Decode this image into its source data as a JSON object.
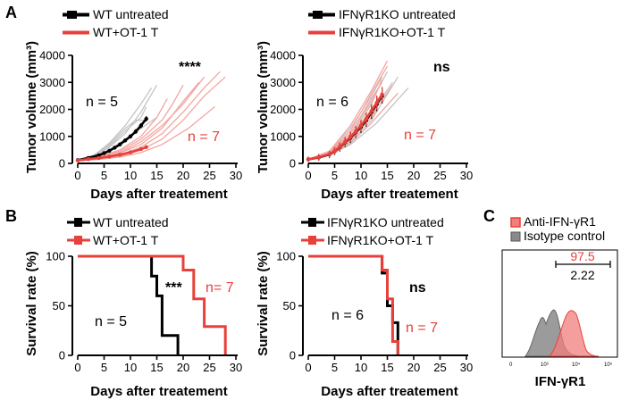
{
  "colors": {
    "black": "#000000",
    "red": "#e8403a",
    "light_red": "#f2a6a2",
    "light_gray": "#c4c4c4",
    "hist_red": "#f27e7e",
    "hist_gray": "#8a8a8a"
  },
  "chart_data": [
    {
      "panel": "A",
      "type": "line",
      "xlabel": "Days after treatement",
      "ylabel": "Tumor volume (mm³)",
      "xlim": [
        0,
        30
      ],
      "ylim": [
        0,
        4000
      ],
      "xticks": [
        0,
        5,
        10,
        15,
        20,
        25,
        30
      ],
      "yticks": [
        0,
        1000,
        2000,
        3000,
        4000
      ],
      "legend": [
        {
          "label": "WT untreated",
          "color": "#000000"
        },
        {
          "label": "WT+OT-1 T",
          "color": "#e8403a"
        }
      ],
      "annotations": [
        {
          "text": "****",
          "color": "#000000"
        },
        {
          "text": "n = 5",
          "color": "#000000"
        },
        {
          "text": "n = 7",
          "color": "#e8403a"
        }
      ],
      "series": [
        {
          "name": "WT untreated mean",
          "x": [
            0,
            2,
            4,
            5,
            6,
            7,
            8,
            9,
            10,
            11,
            12,
            13
          ],
          "y": [
            120,
            200,
            300,
            380,
            470,
            580,
            700,
            850,
            1000,
            1180,
            1400,
            1650
          ],
          "err": 70
        },
        {
          "name": "WT+OT-1 T mean",
          "x": [
            0,
            2,
            4,
            6,
            8,
            10,
            12,
            13
          ],
          "y": [
            110,
            160,
            200,
            250,
            320,
            410,
            530,
            600
          ],
          "err": 40
        }
      ],
      "individual_gray": [
        {
          "x": [
            0,
            3,
            6,
            9,
            12,
            15
          ],
          "y": [
            100,
            250,
            600,
            1100,
            1900,
            2900
          ]
        },
        {
          "x": [
            0,
            3,
            6,
            9,
            12,
            14
          ],
          "y": [
            100,
            280,
            750,
            1400,
            2200,
            2800
          ]
        },
        {
          "x": [
            0,
            3,
            6,
            9,
            12,
            13
          ],
          "y": [
            120,
            300,
            650,
            1200,
            1700,
            2100
          ]
        },
        {
          "x": [
            0,
            3,
            6,
            9,
            11,
            13
          ],
          "y": [
            100,
            300,
            700,
            1300,
            1600,
            1600
          ]
        },
        {
          "x": [
            0,
            3,
            6,
            9,
            12,
            15
          ],
          "y": [
            120,
            250,
            500,
            900,
            1300,
            1700
          ]
        }
      ],
      "individual_red": [
        {
          "x": [
            0,
            4,
            8,
            12,
            16,
            20,
            24,
            28
          ],
          "y": [
            100,
            150,
            250,
            500,
            900,
            1600,
            2500,
            3200
          ]
        },
        {
          "x": [
            0,
            4,
            8,
            12,
            16,
            20,
            24,
            27
          ],
          "y": [
            100,
            180,
            320,
            600,
            1100,
            1900,
            2800,
            3400
          ]
        },
        {
          "x": [
            0,
            4,
            8,
            12,
            16,
            20,
            24
          ],
          "y": [
            100,
            200,
            400,
            800,
            1400,
            2200,
            3200
          ]
        },
        {
          "x": [
            0,
            4,
            8,
            12,
            16,
            20,
            23
          ],
          "y": [
            120,
            200,
            380,
            700,
            1300,
            2300,
            3000
          ]
        },
        {
          "x": [
            0,
            4,
            8,
            12,
            16,
            18,
            20
          ],
          "y": [
            100,
            220,
            450,
            900,
            1600,
            2200,
            2900
          ]
        },
        {
          "x": [
            0,
            4,
            8,
            12,
            15,
            17
          ],
          "y": [
            100,
            250,
            500,
            1000,
            1700,
            2400
          ]
        },
        {
          "x": [
            0,
            4,
            8,
            12,
            16,
            21,
            26
          ],
          "y": [
            100,
            150,
            230,
            400,
            700,
            1300,
            2100
          ]
        }
      ]
    },
    {
      "panel": "A2",
      "type": "line",
      "xlabel": "Days after treatement",
      "ylabel": "Tumor volume (mm³)",
      "xlim": [
        0,
        30
      ],
      "ylim": [
        0,
        4000
      ],
      "xticks": [
        0,
        5,
        10,
        15,
        20,
        25,
        30
      ],
      "yticks": [
        0,
        1000,
        2000,
        3000,
        4000
      ],
      "legend": [
        {
          "label": "IFNγR1KO untreated",
          "color": "#000000"
        },
        {
          "label": "IFNγR1KO+OT-1 T",
          "color": "#e8403a"
        }
      ],
      "annotations": [
        {
          "text": "ns",
          "color": "#000000"
        },
        {
          "text": "n = 6",
          "color": "#000000"
        },
        {
          "text": "n = 7",
          "color": "#e8403a"
        }
      ],
      "series": [
        {
          "name": "IFNγR1KO untreated mean",
          "x": [
            0,
            2,
            4,
            5,
            6,
            7,
            8,
            9,
            10,
            11,
            12,
            13,
            14
          ],
          "y": [
            150,
            220,
            330,
            450,
            600,
            780,
            950,
            1150,
            1350,
            1600,
            1900,
            2200,
            2500
          ],
          "err": 200
        },
        {
          "name": "IFNγR1KO+OT-1 T mean",
          "x": [
            0,
            2,
            4,
            5,
            6,
            7,
            8,
            9,
            10,
            11,
            12,
            13,
            14
          ],
          "y": [
            150,
            230,
            340,
            460,
            620,
            800,
            980,
            1180,
            1400,
            1650,
            1950,
            2250,
            2550
          ],
          "err": 200
        }
      ],
      "individual_gray": [
        {
          "x": [
            0,
            4,
            8,
            12,
            15
          ],
          "y": [
            150,
            400,
            1100,
            2300,
            3400
          ]
        },
        {
          "x": [
            0,
            4,
            8,
            12,
            16
          ],
          "y": [
            150,
            350,
            900,
            1900,
            3000
          ]
        },
        {
          "x": [
            0,
            4,
            8,
            12,
            14
          ],
          "y": [
            150,
            450,
            1300,
            2500,
            3200
          ]
        },
        {
          "x": [
            0,
            4,
            8,
            12,
            17
          ],
          "y": [
            150,
            300,
            800,
            1600,
            3200
          ]
        },
        {
          "x": [
            0,
            4,
            8,
            13,
            19
          ],
          "y": [
            150,
            300,
            700,
            1500,
            2800
          ]
        },
        {
          "x": [
            0,
            4,
            8,
            12,
            14
          ],
          "y": [
            150,
            400,
            1000,
            2000,
            2600
          ]
        }
      ],
      "individual_red": [
        {
          "x": [
            0,
            4,
            8,
            12,
            15
          ],
          "y": [
            150,
            420,
            1200,
            2600,
            3600
          ]
        },
        {
          "x": [
            0,
            4,
            8,
            12,
            14
          ],
          "y": [
            150,
            380,
            1000,
            2200,
            3100
          ]
        },
        {
          "x": [
            0,
            4,
            8,
            12,
            16
          ],
          "y": [
            150,
            330,
            850,
            1800,
            2900
          ]
        },
        {
          "x": [
            0,
            4,
            8,
            12,
            15
          ],
          "y": [
            150,
            450,
            1400,
            2700,
            3800
          ]
        },
        {
          "x": [
            0,
            4,
            8,
            12,
            17
          ],
          "y": [
            150,
            300,
            750,
            1500,
            2600
          ]
        },
        {
          "x": [
            0,
            4,
            8,
            12,
            14
          ],
          "y": [
            150,
            400,
            1100,
            2400,
            3000
          ]
        },
        {
          "x": [
            0,
            4,
            8,
            12,
            13
          ],
          "y": [
            150,
            350,
            900,
            1700,
            2000
          ]
        }
      ]
    },
    {
      "panel": "B",
      "type": "line",
      "step": true,
      "xlabel": "Days after treatement",
      "ylabel": "Survival rate (%)",
      "xlim": [
        0,
        30
      ],
      "ylim": [
        0,
        100
      ],
      "xticks": [
        0,
        5,
        10,
        15,
        20,
        25,
        30
      ],
      "yticks": [
        0,
        50,
        100
      ],
      "legend": [
        {
          "label": "WT untreated",
          "color": "#000000"
        },
        {
          "label": "WT+OT-1 T",
          "color": "#e8403a"
        }
      ],
      "annotations": [
        {
          "text": "***",
          "color": "#000000"
        },
        {
          "text": "n = 5",
          "color": "#000000"
        },
        {
          "text": "n= 7",
          "color": "#e8403a"
        }
      ],
      "series": [
        {
          "name": "WT untreated",
          "x": [
            0,
            14,
            15,
            16,
            19
          ],
          "y": [
            100,
            80,
            60,
            20,
            0
          ]
        },
        {
          "name": "WT+OT-1 T",
          "x": [
            0,
            20,
            22,
            24,
            28
          ],
          "y": [
            100,
            86,
            57,
            29,
            0
          ]
        }
      ]
    },
    {
      "panel": "B2",
      "type": "line",
      "step": true,
      "xlabel": "Days after treatement",
      "ylabel": "Survival rate (%)",
      "xlim": [
        0,
        30
      ],
      "ylim": [
        0,
        100
      ],
      "xticks": [
        0,
        5,
        10,
        15,
        20,
        25,
        30
      ],
      "yticks": [
        0,
        50,
        100
      ],
      "legend": [
        {
          "label": "IFNγR1KO untreated",
          "color": "#000000"
        },
        {
          "label": "IFNγR1KO+OT-1 T",
          "color": "#e8403a"
        }
      ],
      "annotations": [
        {
          "text": "ns",
          "color": "#000000"
        },
        {
          "text": "n = 6",
          "color": "#000000"
        },
        {
          "text": "n = 7",
          "color": "#e8403a"
        }
      ],
      "series": [
        {
          "name": "IFNγR1KO untreated",
          "x": [
            0,
            14,
            15,
            16,
            17
          ],
          "y": [
            100,
            83,
            50,
            33,
            0
          ]
        },
        {
          "name": "IFNγR1KO+OT-1 T",
          "x": [
            0,
            14,
            15,
            16,
            17
          ],
          "y": [
            100,
            86,
            57,
            14,
            0
          ]
        }
      ]
    },
    {
      "panel": "C",
      "type": "area",
      "xlabel": "IFN-γR1",
      "xtick_labels": [
        "0",
        "10³",
        "10⁴",
        "10⁵"
      ],
      "legend": [
        {
          "label": "Anti-IFN-γR1",
          "color": "#f27e7e"
        },
        {
          "label": "Isotype control",
          "color": "#8a8a8a"
        }
      ],
      "gate_values": [
        {
          "text": "97.5",
          "color": "#e8403a"
        },
        {
          "text": "2.22",
          "color": "#000000"
        }
      ]
    }
  ]
}
